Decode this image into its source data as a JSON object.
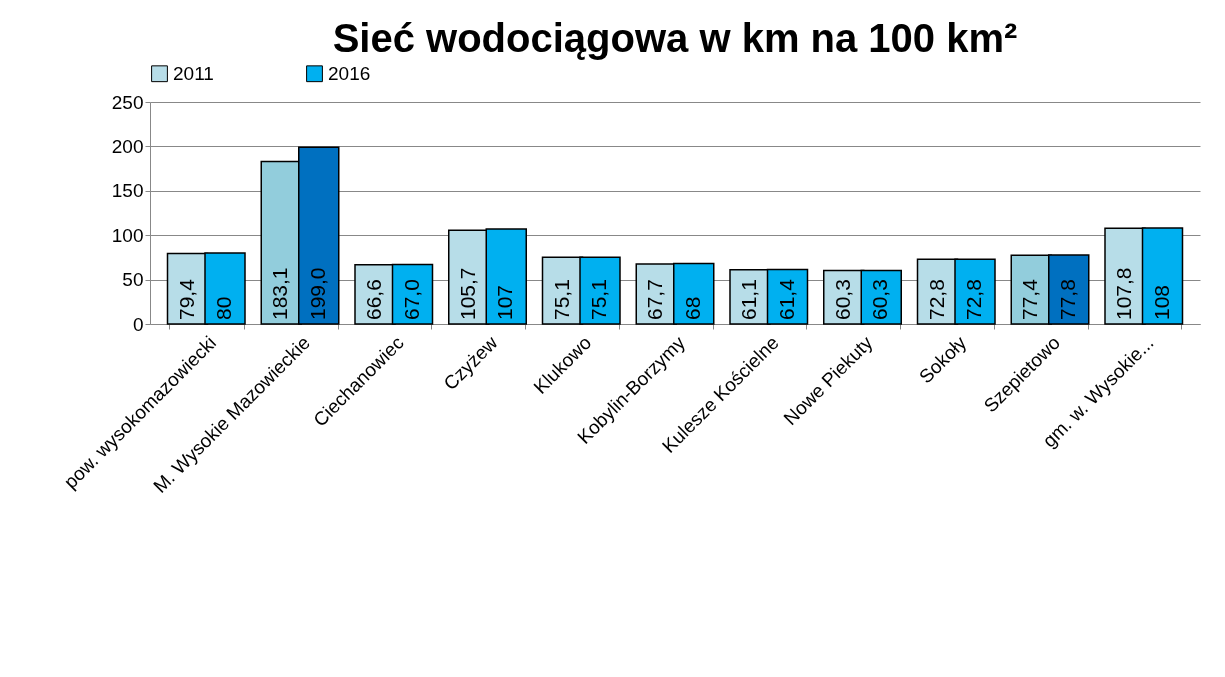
{
  "chart_data": {
    "type": "bar",
    "title": "Sieć wodociągowa w km na 100 km²",
    "categories": [
      "pow. wysokomazowiecki",
      "M. Wysokie Mazowieckie",
      "Ciechanowiec",
      "Czyżew",
      "Klukowo",
      "Kobylin-Borzymy",
      "Kulesze Kościelne",
      "Nowe Piekuty",
      "Sokoły",
      "Szepietowo",
      "gm. w. Wysokie..."
    ],
    "series": [
      {
        "name": "2011",
        "color": "#b7dde8",
        "colors": [
          "#b7dde8",
          "#92cddc",
          "#b7dde8",
          "#b7dde8",
          "#b7dde8",
          "#b7dde8",
          "#b7dde8",
          "#b7dde8",
          "#b7dde8",
          "#92cddc",
          "#b7dde8"
        ],
        "values": [
          79.4,
          183.1,
          66.6,
          105.7,
          75.1,
          67.7,
          61.1,
          60.3,
          72.8,
          77.4,
          107.8
        ],
        "value_labels": [
          "79,4",
          "183,1",
          "66,6",
          "105,7",
          "75,1",
          "67,7",
          "61,1",
          "60,3",
          "72,8",
          "77,4",
          "107,8"
        ]
      },
      {
        "name": "2016",
        "color": "#00b0f0",
        "colors": [
          "#00b0f0",
          "#0070c0",
          "#00b0f0",
          "#00b0f0",
          "#00b0f0",
          "#00b0f0",
          "#00b0f0",
          "#00b0f0",
          "#00b0f0",
          "#0070c0",
          "#00b0f0"
        ],
        "values": [
          80,
          199.0,
          67.0,
          107,
          75.1,
          68,
          61.4,
          60.3,
          72.8,
          77.8,
          108
        ],
        "value_labels": [
          "80",
          "199,0",
          "67,0",
          "107",
          "75,1",
          "68",
          "61,4",
          "60,3",
          "72,8",
          "77,8",
          "108"
        ]
      }
    ],
    "ylim": [
      0,
      250
    ],
    "yticks": [
      0,
      50,
      100,
      150,
      200,
      250
    ],
    "grid": "y",
    "legend": "top"
  }
}
